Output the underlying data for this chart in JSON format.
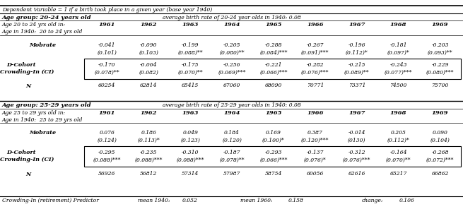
{
  "header_line1": "Dependent Variable = 1 if a birth took place in a given year (base year 1940)",
  "group1_label": "Age group: 20-24 years old",
  "group1_avg": "average birth rate of 20-24 year olds in 1940: 0.08",
  "group1_col_label1": "Age 20 to 24 yrs old in:",
  "group1_col_label2": "Age in 1940:  20 to 24 yrs old",
  "group2_label": "Age group: 25-29 years old",
  "group2_avg": "average birth rate of 25-29 year olds in 1940: 0.08",
  "group2_col_label1": "Age 25 to 29 yrs old in:",
  "group2_col_label2": "Age in 1940:  25 to 29 yrs old",
  "years": [
    "1961",
    "1962",
    "1963",
    "1964",
    "1965",
    "1966",
    "1967",
    "1968",
    "1969"
  ],
  "group1_mobrate_coef": [
    "-0.041",
    "-0.090",
    "-0.199",
    "-0.205",
    "-0.288",
    "-0.267",
    "-0.196",
    "-0.181",
    "-0.203"
  ],
  "group1_mobrate_se": [
    "(0.101)",
    "(0.103)",
    "(0.088)**",
    "(0.080)**",
    "(0.084)***",
    "(0.091)***",
    "(0.112)*",
    "(0.097)*",
    "(0.093)**"
  ],
  "group1_ci_coef": [
    "-0.170",
    "-0.064",
    "-0.175",
    "-0.256",
    "-0.221",
    "-0.282",
    "-0.215",
    "-0.243",
    "-0.229"
  ],
  "group1_ci_se": [
    "(0.078)**",
    "(0.082)",
    "(0.070)**",
    "(0.069)***",
    "(0.066)***",
    "(0.076)***",
    "(0.089)**",
    "(0.077)***",
    "(0.080)***"
  ],
  "group1_N": [
    "60254",
    "62814",
    "65415",
    "67060",
    "68090",
    "70771",
    "73371",
    "74500",
    "75700"
  ],
  "group2_mobrate_coef": [
    "0.076",
    "0.186",
    "0.049",
    "0.184",
    "0.169",
    "0.387",
    "-0.014",
    "0.205",
    "0.090"
  ],
  "group2_mobrate_se": [
    "(0.124)",
    "(0.113)*",
    "(0.123)",
    "(0.120)",
    "(0.100)*",
    "(0.120)***",
    "(0130)",
    "(0.112)*",
    "(0.104)"
  ],
  "group2_ci_coef": [
    "-0.295",
    "-0.235",
    "-0.310",
    "-0.187",
    "-0.293",
    "-0.137",
    "-0.312",
    "-0.164",
    "-0.268"
  ],
  "group2_ci_se": [
    "(0.088)***",
    "(0.088)***",
    "(0.088)***",
    "(0.078)**",
    "(0.066)***",
    "(0.076)*",
    "(0.076)***",
    "(0.070)**",
    "(0.072)***"
  ],
  "group2_N": [
    "56926",
    "56812",
    "57314",
    "57987",
    "58754",
    "60056",
    "62616",
    "65217",
    "66862"
  ],
  "footer_label": "Crowding-In (retirement) Predictor",
  "footer_mean1940_label": "mean 1940:",
  "footer_mean1940_val": "0.052",
  "footer_mean1960_label": "mean 1960:",
  "footer_mean1960_val": "0.158",
  "footer_change_label": "change:",
  "footer_change_val": "0.106"
}
